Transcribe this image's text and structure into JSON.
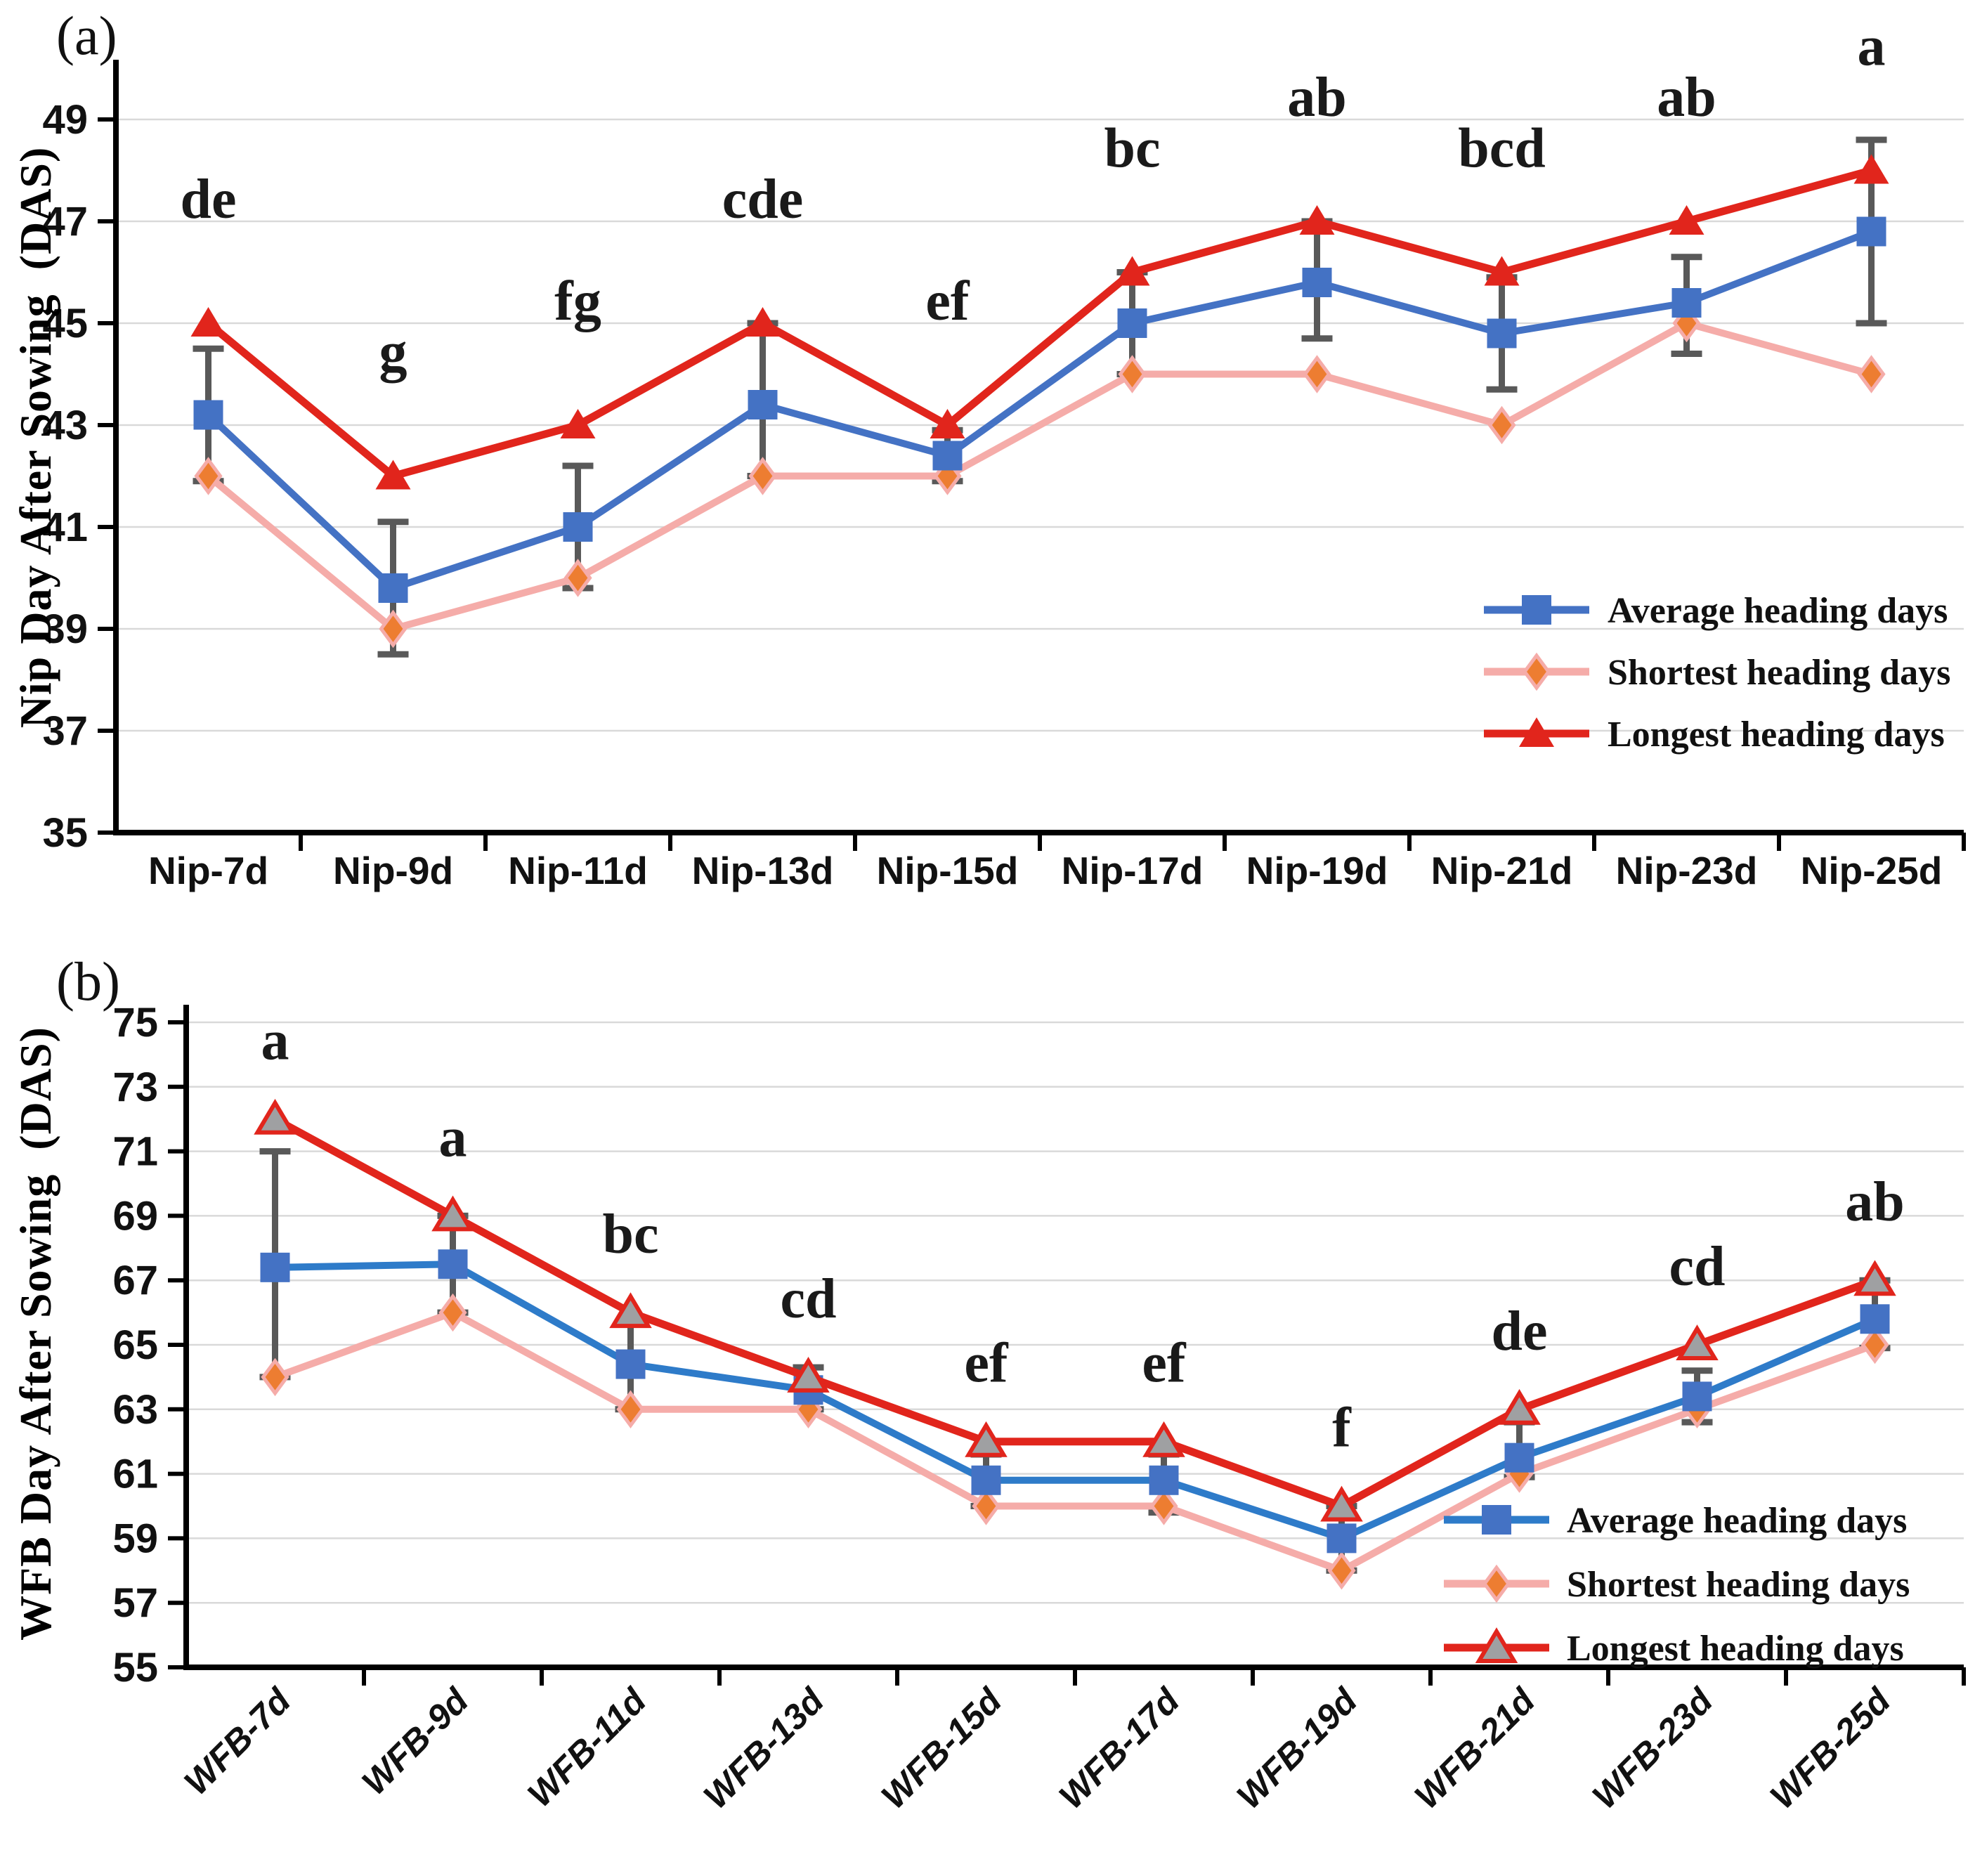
{
  "figure": {
    "background": "#FFFFFF"
  },
  "colors": {
    "average_line_a": "#4472C4",
    "average_marker_a": "#4472C4",
    "average_line_b": "#2E7BC9",
    "average_marker_b": "#4472C4",
    "shortest_line": "#F5ACA9",
    "shortest_marker": "#ED7D31",
    "longest_line": "#E1251C",
    "longest_marker_a": "#E1251C",
    "longest_marker_b": "#9FA0A2",
    "error_bar": "#595959",
    "gridline": "#D9D9D9",
    "axis": "#000000",
    "letters": "#1A1A1A"
  },
  "chart_data": [
    {
      "type": "line",
      "panel_label": "(a)",
      "ylabel": "Nip Day After Sowing  (DAS)",
      "xlabel": "",
      "ylim": [
        35,
        49
      ],
      "y_ticks": [
        35,
        37,
        39,
        41,
        43,
        45,
        47,
        49
      ],
      "grid": true,
      "legend_position": "middle-right",
      "categories": [
        "Nip-7d",
        "Nip-9d",
        "Nip-11d",
        "Nip-13d",
        "Nip-15d",
        "Nip-17d",
        "Nip-19d",
        "Nip-21d",
        "Nip-23d",
        "Nip-25d"
      ],
      "series": [
        {
          "name": "Average heading days",
          "marker": "square",
          "values": [
            43.2,
            39.8,
            41,
            43.4,
            42.4,
            45,
            45.8,
            44.8,
            45.4,
            46.8
          ]
        },
        {
          "name": "Shortest heading days",
          "marker": "diamond",
          "values": [
            42,
            39,
            40,
            42,
            42,
            44,
            44,
            43,
            45,
            44
          ]
        },
        {
          "name": "Longest heading days",
          "marker": "triangle",
          "values": [
            45,
            42,
            43,
            45,
            43,
            46,
            47,
            46,
            47,
            48
          ]
        }
      ],
      "error_bars": {
        "on_series": "Average heading days",
        "low": [
          41.9,
          38.5,
          39.8,
          42.0,
          41.9,
          44.0,
          44.7,
          43.7,
          44.4,
          45.0
        ],
        "high": [
          44.5,
          41.1,
          42.2,
          45.0,
          42.9,
          46.0,
          47.0,
          45.9,
          46.3,
          48.6
        ]
      },
      "sig_letters": [
        "de",
        "g",
        "fg",
        "cde",
        "ef",
        "bc",
        "ab",
        "bcd",
        "ab",
        "a"
      ]
    },
    {
      "type": "line",
      "panel_label": "(b)",
      "ylabel": "WFB Day After Sowing  (DAS)",
      "xlabel": "",
      "ylim": [
        55,
        75
      ],
      "y_ticks": [
        55,
        57,
        59,
        61,
        63,
        65,
        67,
        69,
        71,
        73,
        75
      ],
      "grid": true,
      "legend_position": "bottom-right",
      "categories": [
        "WFB-7d",
        "WFB-9d",
        "WFB-11d",
        "WFB-13d",
        "WFB-15d",
        "WFB-17d",
        "WFB-19d",
        "WFB-21d",
        "WFB-23d",
        "WFB-25d"
      ],
      "series": [
        {
          "name": "Average heading days",
          "marker": "square",
          "values": [
            67.4,
            67.5,
            64.4,
            63.6,
            60.8,
            60.8,
            59,
            61.5,
            63.4,
            65.8
          ]
        },
        {
          "name": "Shortest heading days",
          "marker": "diamond",
          "values": [
            64,
            66,
            63,
            63,
            60,
            60,
            58,
            61,
            63,
            65
          ]
        },
        {
          "name": "Longest heading days",
          "marker": "triangle",
          "values": [
            72,
            69,
            66,
            64,
            62,
            62,
            60,
            63,
            65,
            67
          ]
        }
      ],
      "error_bars": {
        "on_series": "Average heading days",
        "low": [
          64.0,
          66.0,
          63.0,
          63.0,
          60.0,
          59.8,
          58.0,
          60.9,
          62.6,
          64.9
        ],
        "high": [
          71.0,
          69.0,
          65.7,
          64.3,
          61.6,
          61.6,
          60.0,
          62.6,
          64.2,
          67.0
        ]
      },
      "sig_letters": [
        "a",
        "a",
        "bc",
        "cd",
        "ef",
        "ef",
        "f",
        "de",
        "cd",
        "ab"
      ]
    }
  ]
}
